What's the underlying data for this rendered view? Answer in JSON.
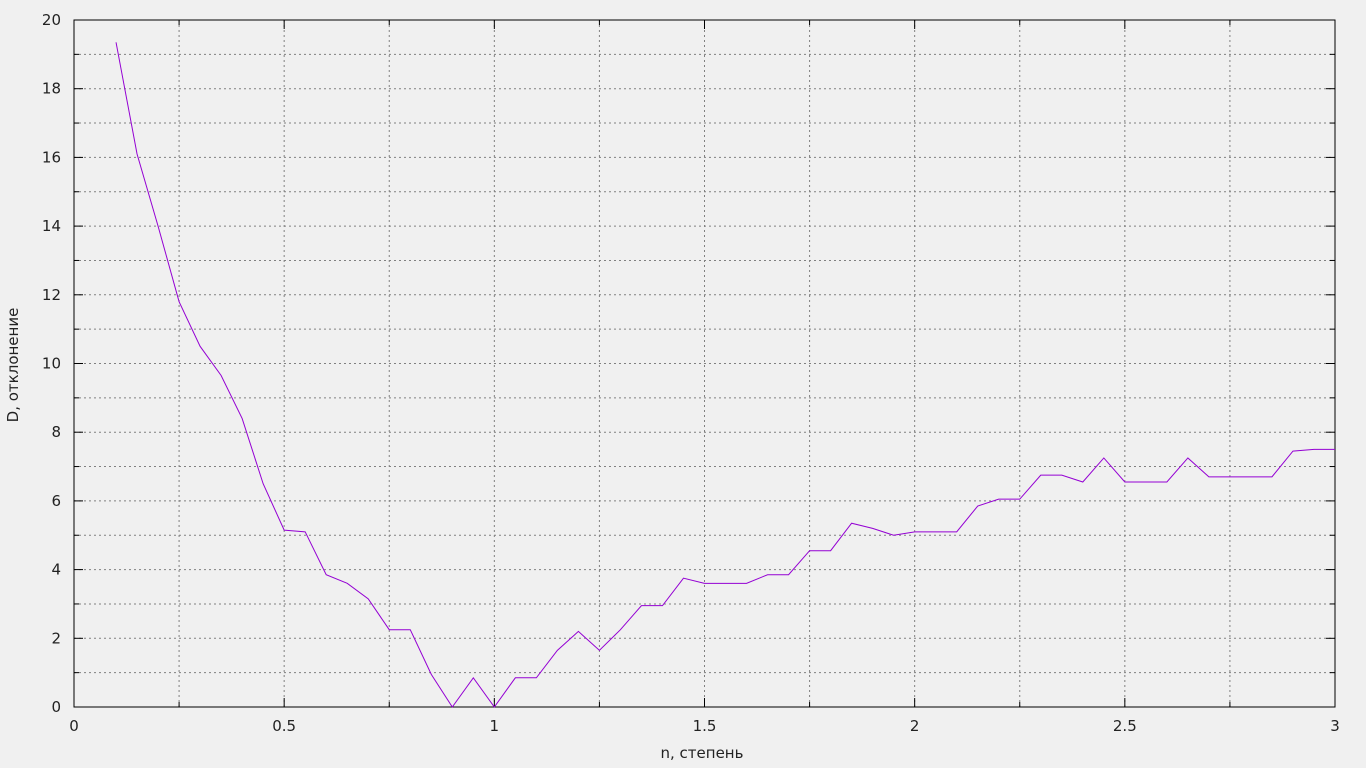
{
  "chart_data": {
    "type": "line",
    "xlabel": "n, степень",
    "ylabel": "D, отклонение",
    "xlim": [
      0,
      3
    ],
    "ylim": [
      0,
      20
    ],
    "x_ticks": [
      "0",
      "0.5",
      "1",
      "1.5",
      "2",
      "2.5",
      "3"
    ],
    "y_ticks": [
      "0",
      "2",
      "4",
      "6",
      "8",
      "10",
      "12",
      "14",
      "16",
      "18",
      "20"
    ],
    "grid": true,
    "grid_style": "dotted",
    "colors": {
      "background": "#f0f0f0",
      "plot_background": "#f0f0f0",
      "line": "#9400d3",
      "grid": "#808080",
      "axes": "#000000"
    },
    "series": [
      {
        "x": [
          0.1,
          0.15,
          0.2,
          0.25,
          0.3,
          0.35,
          0.4,
          0.45,
          0.5,
          0.55,
          0.6,
          0.65,
          0.7,
          0.75,
          0.8,
          0.85,
          0.9,
          0.95,
          1.0,
          1.05,
          1.1,
          1.15,
          1.2,
          1.25,
          1.3,
          1.35,
          1.4,
          1.45,
          1.5,
          1.55,
          1.6,
          1.65,
          1.7,
          1.75,
          1.8,
          1.85,
          1.9,
          1.95,
          2.0,
          2.05,
          2.1,
          2.15,
          2.2,
          2.25,
          2.3,
          2.35,
          2.4,
          2.45,
          2.5,
          2.55,
          2.6,
          2.65,
          2.7,
          2.75,
          2.8,
          2.85,
          2.9,
          2.95,
          3.0
        ],
        "values": [
          19.35,
          16.1,
          14.0,
          11.8,
          10.5,
          9.65,
          8.4,
          6.5,
          5.15,
          5.1,
          3.85,
          3.6,
          3.15,
          2.25,
          2.25,
          0.95,
          0.0,
          0.85,
          0.0,
          0.85,
          0.85,
          1.65,
          2.2,
          1.65,
          2.25,
          2.95,
          2.95,
          3.75,
          3.6,
          3.6,
          3.6,
          3.85,
          3.85,
          4.55,
          4.55,
          5.35,
          5.2,
          5.0,
          5.1,
          5.1,
          5.1,
          5.85,
          6.05,
          6.05,
          6.75,
          6.75,
          6.55,
          7.25,
          6.55,
          6.55,
          6.55,
          7.25,
          6.7,
          6.7,
          6.7,
          6.7,
          7.45,
          7.5,
          7.5
        ]
      }
    ]
  }
}
